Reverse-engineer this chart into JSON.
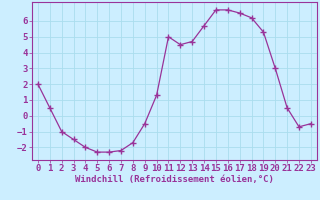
{
  "x": [
    0,
    1,
    2,
    3,
    4,
    5,
    6,
    7,
    8,
    9,
    10,
    11,
    12,
    13,
    14,
    15,
    16,
    17,
    18,
    19,
    20,
    21,
    22,
    23
  ],
  "y": [
    2,
    0.5,
    -1,
    -1.5,
    -2,
    -2.3,
    -2.3,
    -2.2,
    -1.7,
    -0.5,
    1.3,
    5.0,
    4.5,
    4.7,
    5.7,
    6.7,
    6.7,
    6.5,
    6.2,
    5.3,
    3.0,
    0.5,
    -0.7,
    -0.5
  ],
  "line_color": "#993399",
  "marker": "+",
  "marker_size": 4,
  "xlabel": "Windchill (Refroidissement éolien,°C)",
  "xlim": [
    -0.5,
    23.5
  ],
  "ylim": [
    -2.8,
    7.2
  ],
  "yticks": [
    -2,
    -1,
    0,
    1,
    2,
    3,
    4,
    5,
    6
  ],
  "xticks": [
    0,
    1,
    2,
    3,
    4,
    5,
    6,
    7,
    8,
    9,
    10,
    11,
    12,
    13,
    14,
    15,
    16,
    17,
    18,
    19,
    20,
    21,
    22,
    23
  ],
  "bg_color": "#cceeff",
  "grid_color": "#aaddee",
  "line_color_axis": "#993399",
  "tick_label_color": "#993399",
  "axis_label_color": "#993399",
  "font_size": 6.5
}
